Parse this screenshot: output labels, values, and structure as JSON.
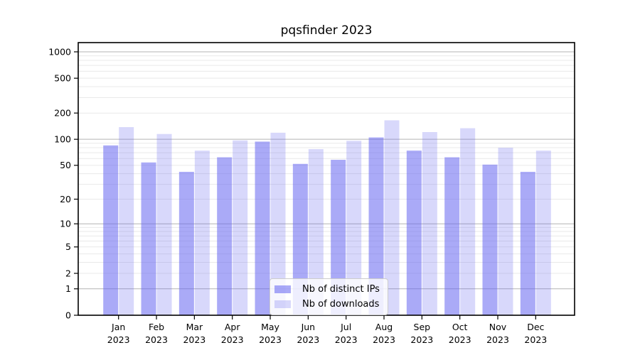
{
  "chart_data": {
    "type": "bar",
    "title": "pqsfinder 2023",
    "categories": [
      "Jan\n2023",
      "Feb\n2023",
      "Mar\n2023",
      "Apr\n2023",
      "May\n2023",
      "Jun\n2023",
      "Jul\n2023",
      "Aug\n2023",
      "Sep\n2023",
      "Oct\n2023",
      "Nov\n2023",
      "Dec\n2023"
    ],
    "series": [
      {
        "name": "Nb of distinct IPs",
        "color": "#a9a9f7",
        "fill": "rgba(100,100,240,0.55)",
        "values": [
          85,
          54,
          42,
          62,
          94,
          52,
          58,
          105,
          74,
          62,
          51,
          42
        ]
      },
      {
        "name": "Nb of downloads",
        "color": "#d9d9f8",
        "fill": "rgba(100,100,240,0.25)",
        "values": [
          138,
          115,
          74,
          97,
          119,
          77,
          96,
          165,
          121,
          134,
          80,
          74
        ]
      }
    ],
    "y_axis": {
      "scale": "log10(1+x)",
      "ticks": [
        0,
        1,
        2,
        5,
        10,
        20,
        50,
        100,
        200,
        500,
        1000
      ],
      "grid_major": [
        1,
        10,
        100,
        1000
      ],
      "grid_minor": [
        2,
        3,
        4,
        5,
        6,
        7,
        8,
        9,
        20,
        30,
        40,
        50,
        60,
        70,
        80,
        90,
        200,
        300,
        400,
        500,
        600,
        700,
        800,
        900
      ],
      "ylim": [
        0,
        1300
      ]
    },
    "legend_position": "bottom-center",
    "grid": true,
    "colors": {
      "grid_major": "#b3b3b3",
      "grid_minor": "#e9e9e9",
      "spine": "#000000",
      "tick_label": "#000000"
    }
  }
}
